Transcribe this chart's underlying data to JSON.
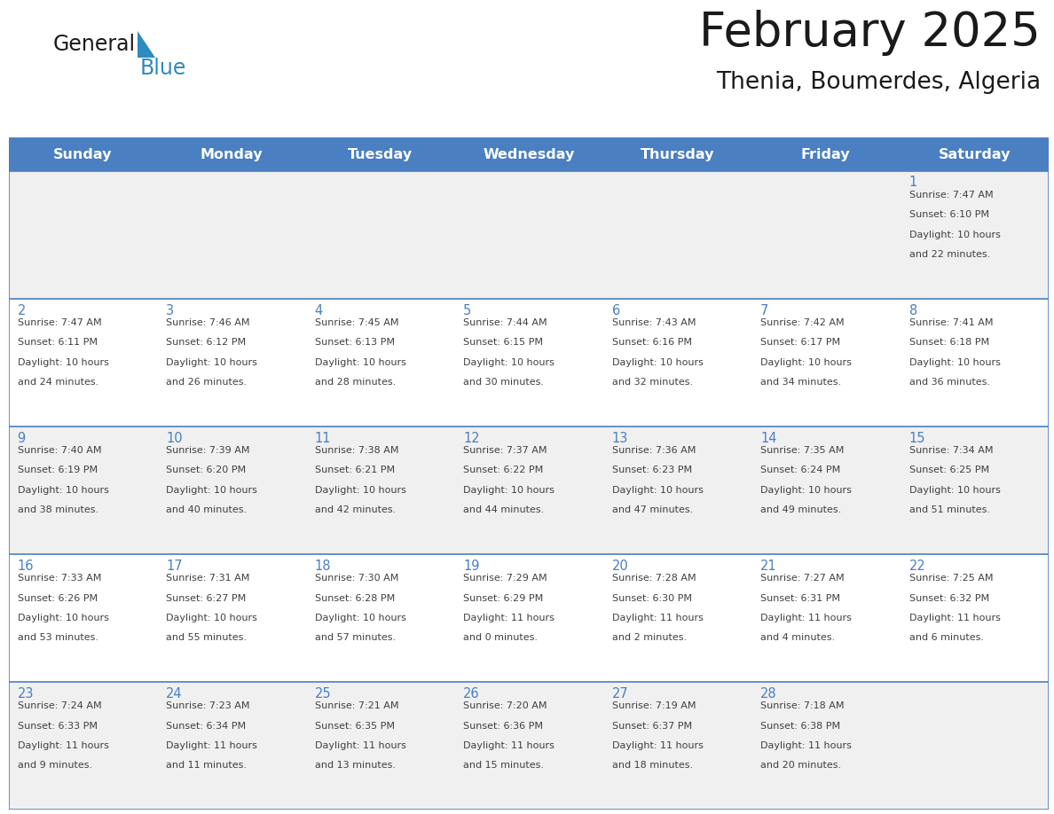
{
  "title": "February 2025",
  "subtitle": "Thenia, Boumerdes, Algeria",
  "days_of_week": [
    "Sunday",
    "Monday",
    "Tuesday",
    "Wednesday",
    "Thursday",
    "Friday",
    "Saturday"
  ],
  "header_bg": "#4a7fc1",
  "header_text": "#FFFFFF",
  "cell_bg_odd": "#f0f0f0",
  "cell_bg_even": "#FFFFFF",
  "cell_border": "#4a7fc1",
  "day_number_color": "#4a7fc1",
  "text_color": "#404040",
  "title_color": "#1a1a1a",
  "logo_general_color": "#1a1a1a",
  "logo_blue_color": "#2E8BC0",
  "calendar_data": [
    {
      "day": 1,
      "col": 6,
      "row": 0,
      "sunrise": "7:47 AM",
      "sunset": "6:10 PM",
      "daylight_line1": "10 hours",
      "daylight_line2": "and 22 minutes."
    },
    {
      "day": 2,
      "col": 0,
      "row": 1,
      "sunrise": "7:47 AM",
      "sunset": "6:11 PM",
      "daylight_line1": "10 hours",
      "daylight_line2": "and 24 minutes."
    },
    {
      "day": 3,
      "col": 1,
      "row": 1,
      "sunrise": "7:46 AM",
      "sunset": "6:12 PM",
      "daylight_line1": "10 hours",
      "daylight_line2": "and 26 minutes."
    },
    {
      "day": 4,
      "col": 2,
      "row": 1,
      "sunrise": "7:45 AM",
      "sunset": "6:13 PM",
      "daylight_line1": "10 hours",
      "daylight_line2": "and 28 minutes."
    },
    {
      "day": 5,
      "col": 3,
      "row": 1,
      "sunrise": "7:44 AM",
      "sunset": "6:15 PM",
      "daylight_line1": "10 hours",
      "daylight_line2": "and 30 minutes."
    },
    {
      "day": 6,
      "col": 4,
      "row": 1,
      "sunrise": "7:43 AM",
      "sunset": "6:16 PM",
      "daylight_line1": "10 hours",
      "daylight_line2": "and 32 minutes."
    },
    {
      "day": 7,
      "col": 5,
      "row": 1,
      "sunrise": "7:42 AM",
      "sunset": "6:17 PM",
      "daylight_line1": "10 hours",
      "daylight_line2": "and 34 minutes."
    },
    {
      "day": 8,
      "col": 6,
      "row": 1,
      "sunrise": "7:41 AM",
      "sunset": "6:18 PM",
      "daylight_line1": "10 hours",
      "daylight_line2": "and 36 minutes."
    },
    {
      "day": 9,
      "col": 0,
      "row": 2,
      "sunrise": "7:40 AM",
      "sunset": "6:19 PM",
      "daylight_line1": "10 hours",
      "daylight_line2": "and 38 minutes."
    },
    {
      "day": 10,
      "col": 1,
      "row": 2,
      "sunrise": "7:39 AM",
      "sunset": "6:20 PM",
      "daylight_line1": "10 hours",
      "daylight_line2": "and 40 minutes."
    },
    {
      "day": 11,
      "col": 2,
      "row": 2,
      "sunrise": "7:38 AM",
      "sunset": "6:21 PM",
      "daylight_line1": "10 hours",
      "daylight_line2": "and 42 minutes."
    },
    {
      "day": 12,
      "col": 3,
      "row": 2,
      "sunrise": "7:37 AM",
      "sunset": "6:22 PM",
      "daylight_line1": "10 hours",
      "daylight_line2": "and 44 minutes."
    },
    {
      "day": 13,
      "col": 4,
      "row": 2,
      "sunrise": "7:36 AM",
      "sunset": "6:23 PM",
      "daylight_line1": "10 hours",
      "daylight_line2": "and 47 minutes."
    },
    {
      "day": 14,
      "col": 5,
      "row": 2,
      "sunrise": "7:35 AM",
      "sunset": "6:24 PM",
      "daylight_line1": "10 hours",
      "daylight_line2": "and 49 minutes."
    },
    {
      "day": 15,
      "col": 6,
      "row": 2,
      "sunrise": "7:34 AM",
      "sunset": "6:25 PM",
      "daylight_line1": "10 hours",
      "daylight_line2": "and 51 minutes."
    },
    {
      "day": 16,
      "col": 0,
      "row": 3,
      "sunrise": "7:33 AM",
      "sunset": "6:26 PM",
      "daylight_line1": "10 hours",
      "daylight_line2": "and 53 minutes."
    },
    {
      "day": 17,
      "col": 1,
      "row": 3,
      "sunrise": "7:31 AM",
      "sunset": "6:27 PM",
      "daylight_line1": "10 hours",
      "daylight_line2": "and 55 minutes."
    },
    {
      "day": 18,
      "col": 2,
      "row": 3,
      "sunrise": "7:30 AM",
      "sunset": "6:28 PM",
      "daylight_line1": "10 hours",
      "daylight_line2": "and 57 minutes."
    },
    {
      "day": 19,
      "col": 3,
      "row": 3,
      "sunrise": "7:29 AM",
      "sunset": "6:29 PM",
      "daylight_line1": "11 hours",
      "daylight_line2": "and 0 minutes."
    },
    {
      "day": 20,
      "col": 4,
      "row": 3,
      "sunrise": "7:28 AM",
      "sunset": "6:30 PM",
      "daylight_line1": "11 hours",
      "daylight_line2": "and 2 minutes."
    },
    {
      "day": 21,
      "col": 5,
      "row": 3,
      "sunrise": "7:27 AM",
      "sunset": "6:31 PM",
      "daylight_line1": "11 hours",
      "daylight_line2": "and 4 minutes."
    },
    {
      "day": 22,
      "col": 6,
      "row": 3,
      "sunrise": "7:25 AM",
      "sunset": "6:32 PM",
      "daylight_line1": "11 hours",
      "daylight_line2": "and 6 minutes."
    },
    {
      "day": 23,
      "col": 0,
      "row": 4,
      "sunrise": "7:24 AM",
      "sunset": "6:33 PM",
      "daylight_line1": "11 hours",
      "daylight_line2": "and 9 minutes."
    },
    {
      "day": 24,
      "col": 1,
      "row": 4,
      "sunrise": "7:23 AM",
      "sunset": "6:34 PM",
      "daylight_line1": "11 hours",
      "daylight_line2": "and 11 minutes."
    },
    {
      "day": 25,
      "col": 2,
      "row": 4,
      "sunrise": "7:21 AM",
      "sunset": "6:35 PM",
      "daylight_line1": "11 hours",
      "daylight_line2": "and 13 minutes."
    },
    {
      "day": 26,
      "col": 3,
      "row": 4,
      "sunrise": "7:20 AM",
      "sunset": "6:36 PM",
      "daylight_line1": "11 hours",
      "daylight_line2": "and 15 minutes."
    },
    {
      "day": 27,
      "col": 4,
      "row": 4,
      "sunrise": "7:19 AM",
      "sunset": "6:37 PM",
      "daylight_line1": "11 hours",
      "daylight_line2": "and 18 minutes."
    },
    {
      "day": 28,
      "col": 5,
      "row": 4,
      "sunrise": "7:18 AM",
      "sunset": "6:38 PM",
      "daylight_line1": "11 hours",
      "daylight_line2": "and 20 minutes."
    }
  ]
}
